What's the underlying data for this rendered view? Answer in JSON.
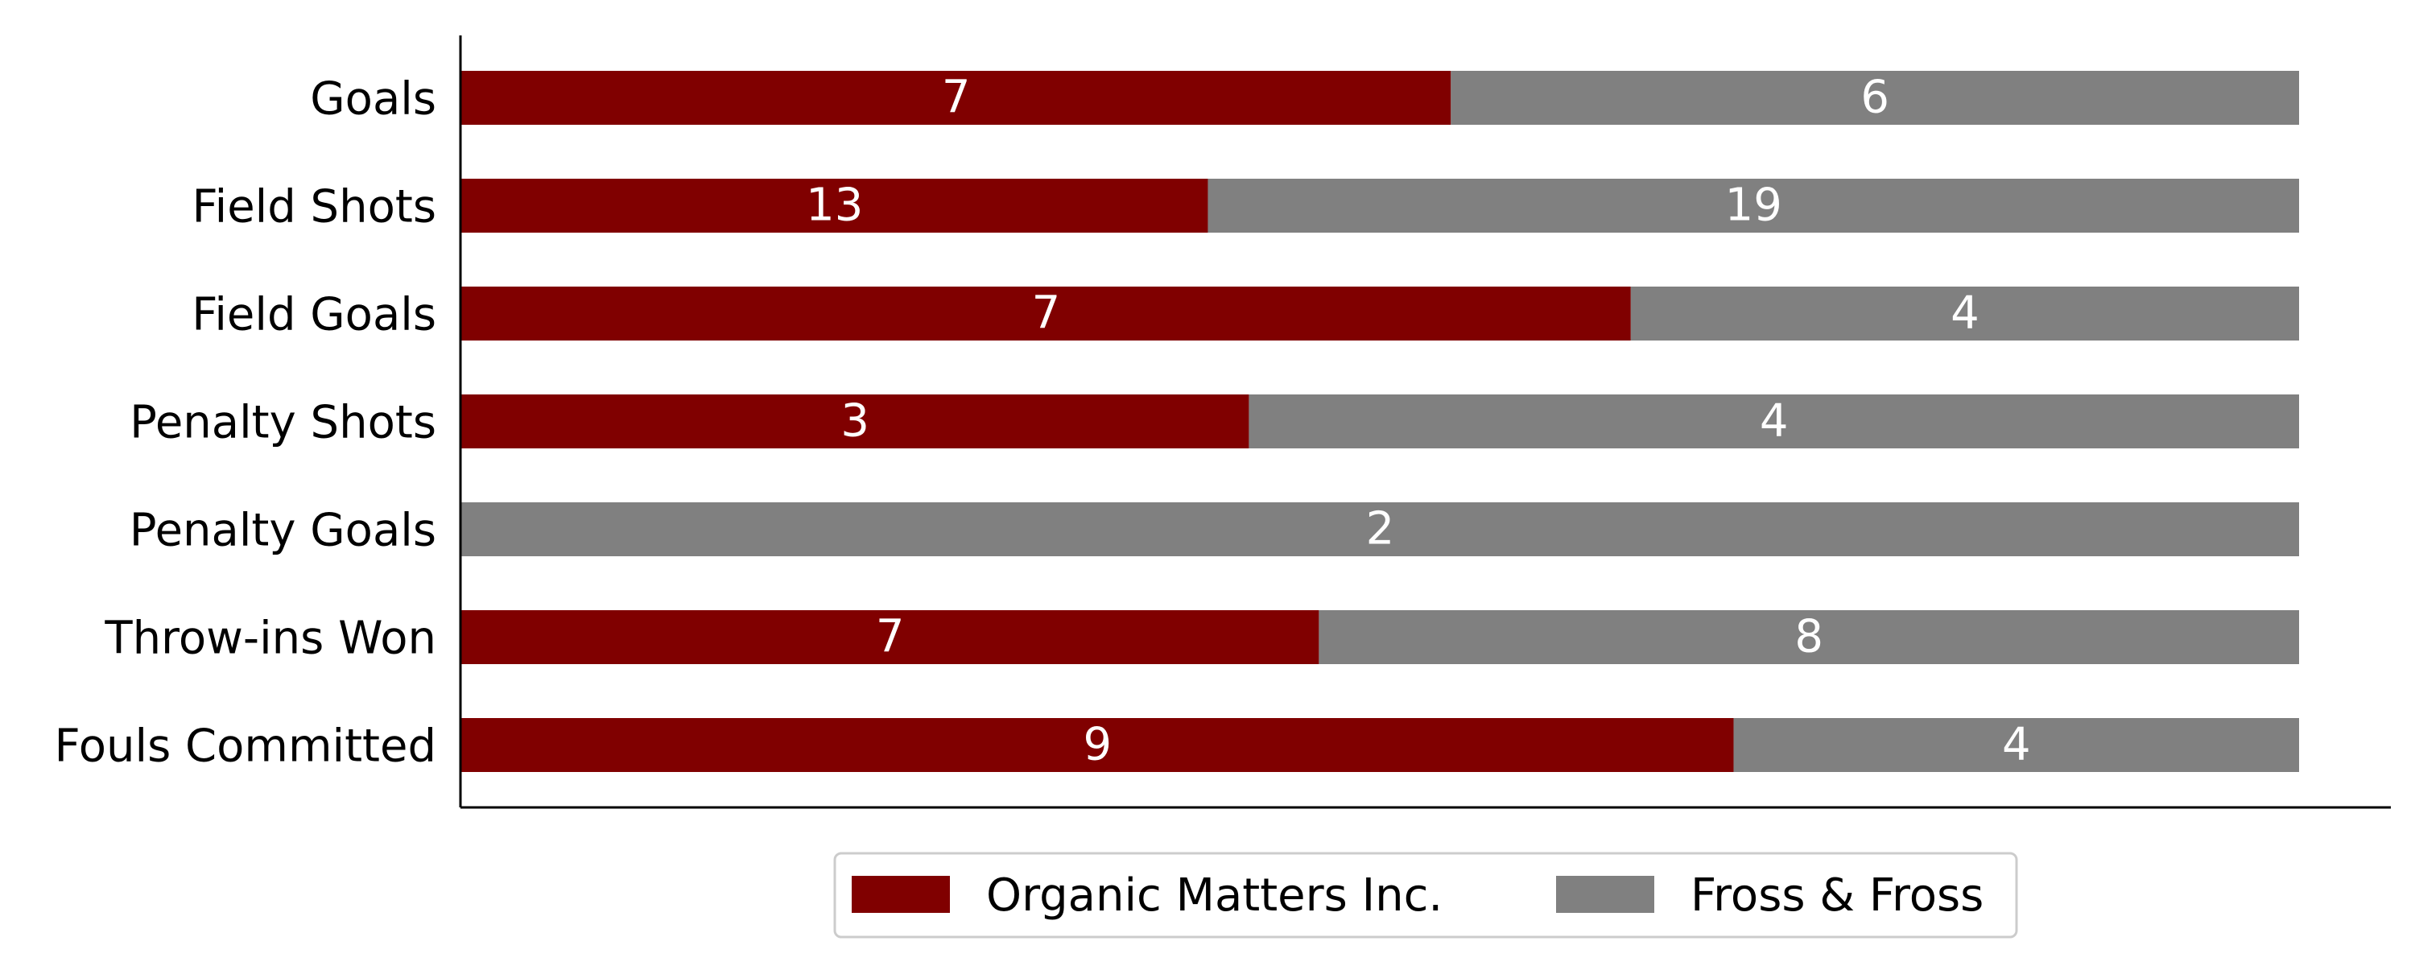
{
  "chart_data": {
    "type": "bar",
    "orientation": "horizontal",
    "stacked": "percent",
    "categories": [
      "Goals",
      "Field Shots",
      "Field Goals",
      "Penalty Shots",
      "Penalty Goals",
      "Throw-ins Won",
      "Fouls Committed"
    ],
    "series": [
      {
        "name": "Organic Matters Inc.",
        "color": "#800000",
        "values": [
          7,
          13,
          7,
          3,
          0,
          7,
          9
        ]
      },
      {
        "name": "Fross & Fross",
        "color": "#808080",
        "values": [
          6,
          19,
          4,
          4,
          2,
          8,
          4
        ]
      }
    ],
    "title": "",
    "xlabel": "",
    "ylabel": "",
    "grid": false,
    "legend_position": "bottom-center"
  }
}
